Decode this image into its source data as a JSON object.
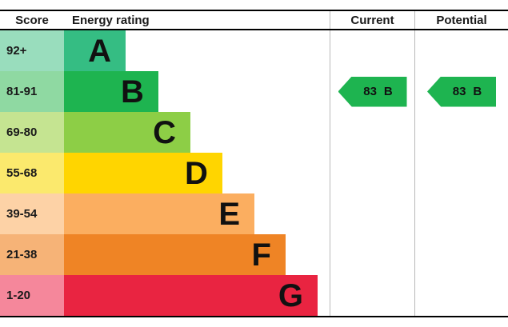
{
  "header": {
    "score": "Score",
    "energy_rating": "Energy rating",
    "current": "Current",
    "potential": "Potential"
  },
  "chart_data": {
    "type": "bar",
    "title": "Energy rating (EPC band chart)",
    "legend_position": "none",
    "grid": false,
    "bands": [
      {
        "score": "92+",
        "letter": "A",
        "color": "#35bd83",
        "tint": "#99ddbd",
        "width_pct": 23.2
      },
      {
        "score": "81-91",
        "letter": "B",
        "color": "#1eb450",
        "tint": "#8fd9a2",
        "width_pct": 35.5
      },
      {
        "score": "69-80",
        "letter": "C",
        "color": "#8dce46",
        "tint": "#c5e491",
        "width_pct": 47.6
      },
      {
        "score": "55-68",
        "letter": "D",
        "color": "#ffd500",
        "tint": "#fbe96d",
        "width_pct": 59.6
      },
      {
        "score": "39-54",
        "letter": "E",
        "color": "#fbae60",
        "tint": "#fdd2a6",
        "width_pct": 71.7
      },
      {
        "score": "21-38",
        "letter": "F",
        "color": "#ef8425",
        "tint": "#f6b377",
        "width_pct": 83.4
      },
      {
        "score": "1-20",
        "letter": "G",
        "color": "#e92441",
        "tint": "#f5879b",
        "width_pct": 95.5
      }
    ],
    "current": {
      "value": "83",
      "letter": "B"
    },
    "potential": {
      "value": "83",
      "letter": "B"
    },
    "arrow_color": "#1eb450",
    "current_band_index": 1
  }
}
